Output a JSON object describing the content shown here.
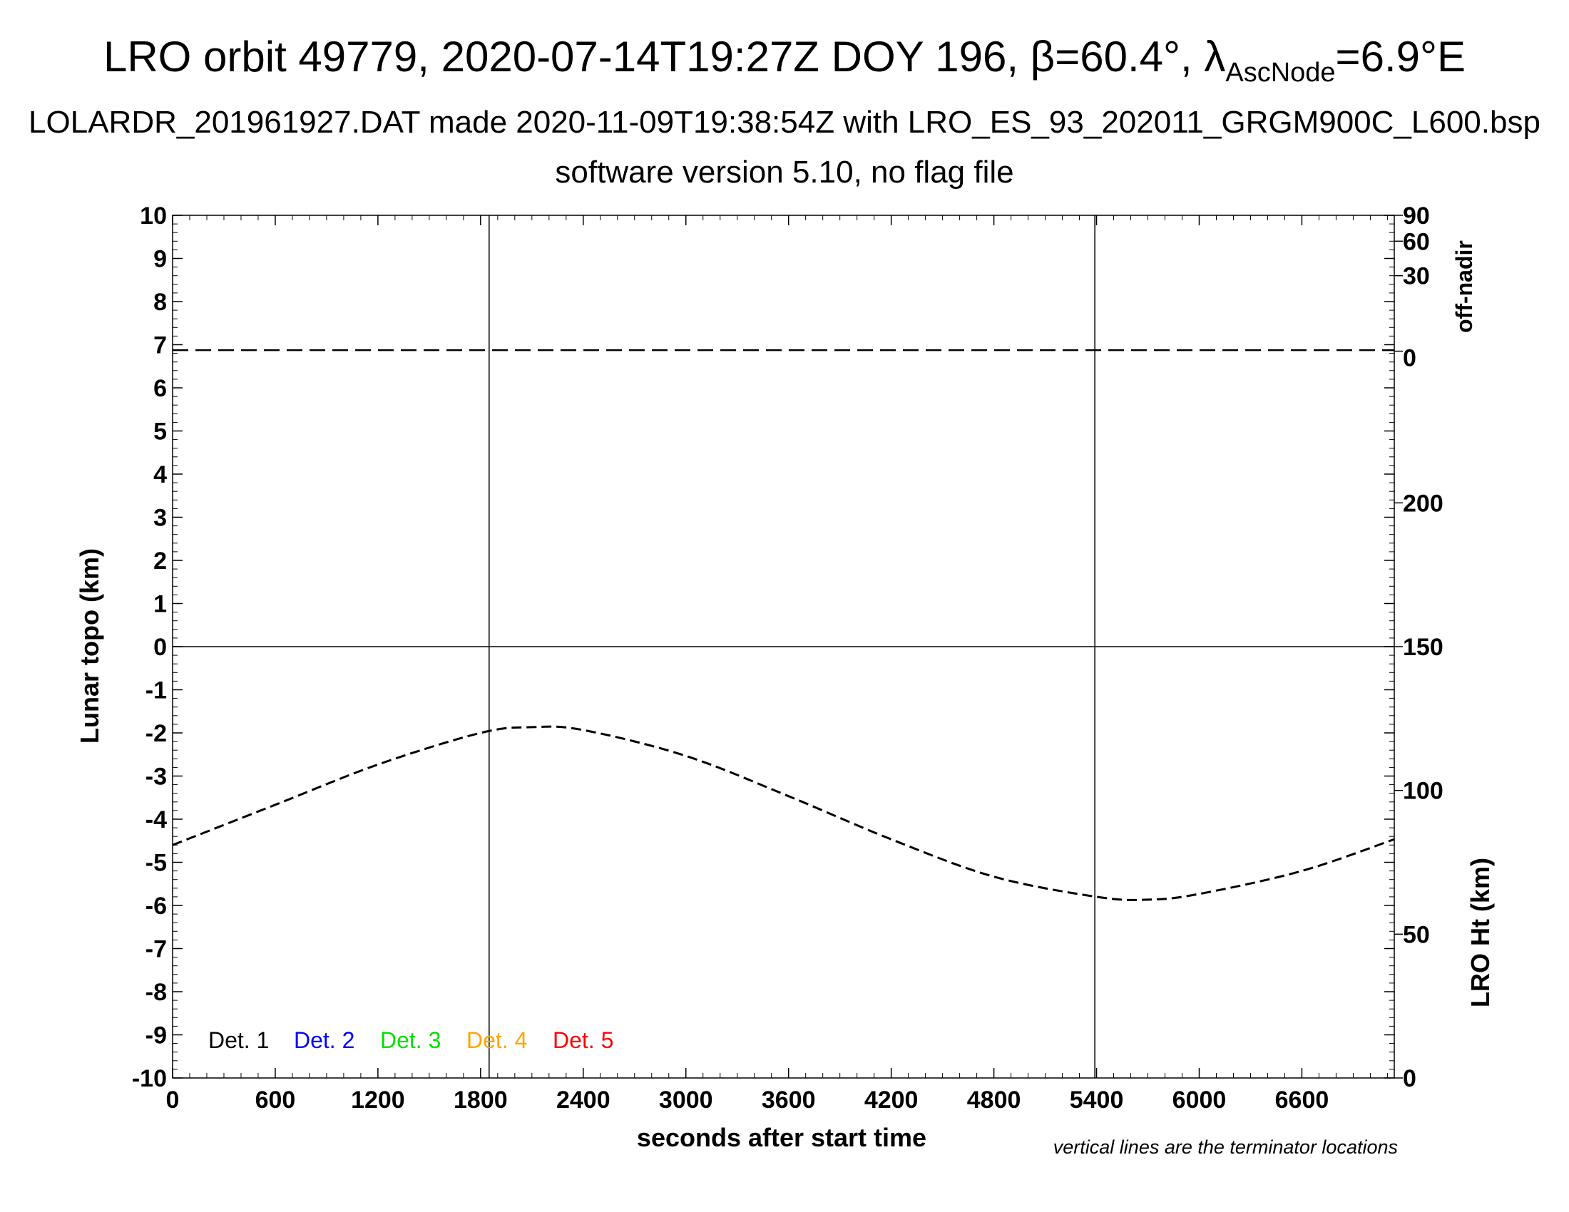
{
  "chart_data": {
    "type": "line",
    "title": "LRO orbit 49779, 2020-07-14T19:27Z DOY 196, β=60.4°, λ",
    "title_subscript": "AscNode",
    "title_suffix": "=6.9°E",
    "subtitle": "LOLARDR_201961927.DAT made 2020-11-09T19:38:54Z with LRO_ES_93_202011_GRGM900C_L600.bsp",
    "subtitle2": "software version 5.10, no flag file",
    "xlabel": "seconds after start time",
    "ylabel": "Lunar topo (km)",
    "y2label_top": "off-nadir",
    "y2label_bottom": "LRO Ht (km)",
    "footnote": "vertical lines are the terminator locations",
    "xlim": [
      0,
      7140
    ],
    "ylim": [
      -10,
      10
    ],
    "xticks": [
      "0",
      "600",
      "1200",
      "1800",
      "2400",
      "3000",
      "3600",
      "4200",
      "4800",
      "5400",
      "6000",
      "6600"
    ],
    "yticks": [
      "10",
      "9",
      "8",
      "7",
      "6",
      "5",
      "4",
      "3",
      "2",
      "1",
      "0",
      "-1",
      "-2",
      "-3",
      "-4",
      "-5",
      "-6",
      "-7",
      "-8",
      "-9",
      "-10"
    ],
    "offnadir_ticks": [
      "90",
      "60",
      "30",
      "0"
    ],
    "height_ticks": [
      "200",
      "150",
      "100",
      "50",
      "0"
    ],
    "height_range": [
      0,
      300
    ],
    "terminator_x": [
      1850,
      5390
    ],
    "legend": [
      {
        "label": "Det. 1",
        "color": "#000000"
      },
      {
        "label": "Det. 2",
        "color": "#0000ff"
      },
      {
        "label": "Det. 3",
        "color": "#00e000"
      },
      {
        "label": "Det. 4",
        "color": "#ffa500"
      },
      {
        "label": "Det. 5",
        "color": "#ff0000"
      }
    ],
    "series": [
      {
        "axis": "off-nadir (deg)",
        "style": "dashed",
        "x": [
          0,
          7140
        ],
        "values": [
          0.4,
          0.4
        ]
      },
      {
        "axis": "LRO Ht (km)",
        "style": "dashed",
        "x": [
          0,
          600,
          1200,
          1800,
          2100,
          2400,
          3000,
          3600,
          4200,
          4800,
          5400,
          5700,
          6000,
          6600,
          7140
        ],
        "values": [
          81,
          95,
          109,
          120,
          122,
          121,
          112,
          98,
          83,
          70,
          63,
          62,
          64,
          72,
          83
        ]
      }
    ]
  }
}
